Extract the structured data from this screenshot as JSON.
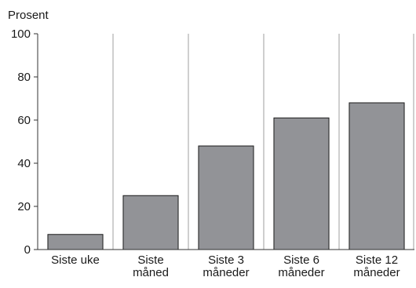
{
  "chart_data": {
    "type": "bar",
    "title": "",
    "ylabel": "Prosent",
    "xlabel": "",
    "ylim": [
      0,
      100
    ],
    "yticks": [
      0,
      20,
      40,
      60,
      80,
      100
    ],
    "grid": "vertical",
    "categories": [
      [
        "Siste uke"
      ],
      [
        "Siste",
        "måned"
      ],
      [
        "Siste 3",
        "måneder"
      ],
      [
        "Siste 6",
        "måneder"
      ],
      [
        "Siste 12",
        "måneder"
      ]
    ],
    "values": [
      7,
      25,
      48,
      61,
      68
    ],
    "colors": {
      "bar": "#929397",
      "bar_edge": "#1a1a1a",
      "grid": "#cfcfcf",
      "axis": "#333333"
    }
  }
}
